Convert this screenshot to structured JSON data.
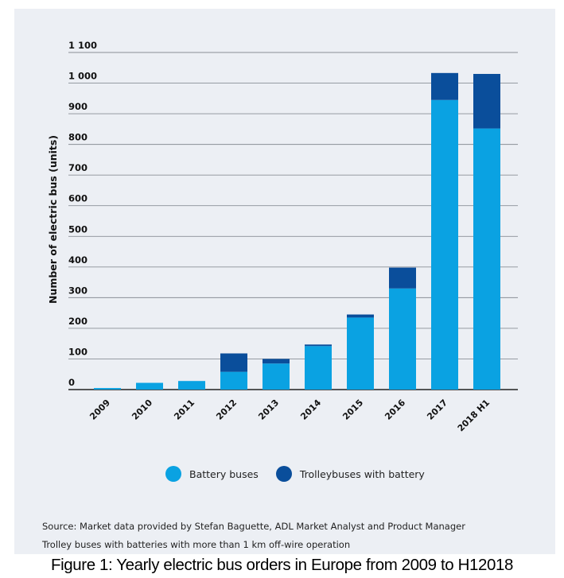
{
  "chart_data": {
    "type": "bar",
    "stacked": true,
    "categories": [
      "2009",
      "2010",
      "2011",
      "2012",
      "2013",
      "2014",
      "2015",
      "2016",
      "2017",
      "2018 H1"
    ],
    "series": [
      {
        "name": "Battery buses",
        "color": "#0aa2e2",
        "values": [
          5,
          22,
          28,
          58,
          85,
          142,
          235,
          330,
          945,
          852
        ]
      },
      {
        "name": "Trolleybuses with battery",
        "color": "#0a4e9b",
        "values": [
          0,
          0,
          0,
          60,
          15,
          5,
          10,
          68,
          88,
          178
        ]
      }
    ],
    "ylabel": "Number of electric bus (units)",
    "ylim": [
      0,
      1100
    ],
    "yticks": [
      0,
      100,
      200,
      300,
      400,
      500,
      600,
      700,
      800,
      900,
      1000,
      1100
    ],
    "ytick_labels": [
      "0",
      "100",
      "200",
      "300",
      "400",
      "500",
      "600",
      "700",
      "800",
      "900",
      "1 000",
      "1 100"
    ],
    "grid": true,
    "legend_position": "bottom"
  },
  "source_note": {
    "line1": "Source:  Market data provided by Stefan Baguette, ADL Market Analyst and Product Manager",
    "line2": "Trolley buses with batteries with more than 1 km off-wire operation"
  },
  "caption": "Figure 1: Yearly electric bus orders in Europe from 2009 to H12018"
}
